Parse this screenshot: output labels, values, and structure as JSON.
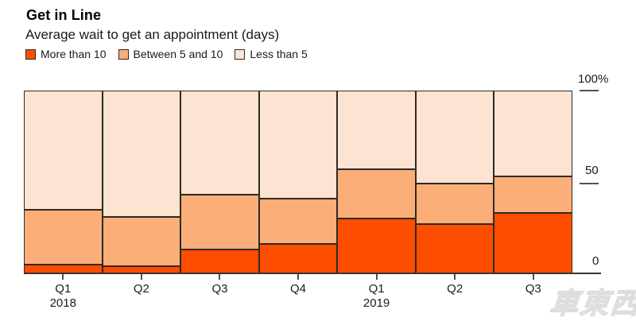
{
  "header": {
    "title": "Get in Line",
    "subtitle": "Average wait to get an appointment (days)"
  },
  "legend": {
    "items": [
      {
        "label": "More than 10",
        "color": "#fc4d00"
      },
      {
        "label": "Between 5 and 10",
        "color": "#fcae78"
      },
      {
        "label": "Less than 5",
        "color": "#fde3d1"
      }
    ]
  },
  "y_axis": {
    "ticks": [
      {
        "label": "100%",
        "value": 100
      },
      {
        "label": "50",
        "value": 50
      },
      {
        "label": "0",
        "value": 0
      }
    ]
  },
  "x_axis": {
    "labels": [
      {
        "quarter": "Q1",
        "year": "2018"
      },
      {
        "quarter": "Q2"
      },
      {
        "quarter": "Q3"
      },
      {
        "quarter": "Q4"
      },
      {
        "quarter": "Q1",
        "year": "2019"
      },
      {
        "quarter": "Q2"
      },
      {
        "quarter": "Q3"
      }
    ]
  },
  "chart_data": {
    "type": "bar",
    "stacked": true,
    "unit": "percent",
    "title": "Get in Line",
    "subtitle": "Average wait to get an appointment (days)",
    "categories": [
      "Q1 2018",
      "Q2 2018",
      "Q3 2018",
      "Q4 2018",
      "Q1 2019",
      "Q2 2019",
      "Q3 2019"
    ],
    "series": [
      {
        "name": "More than 10",
        "color": "#fc4d00",
        "values": [
          5,
          4,
          13,
          16,
          30,
          27,
          33
        ]
      },
      {
        "name": "Between 5 and 10",
        "color": "#fcae78",
        "values": [
          30,
          27,
          30,
          25,
          27,
          22,
          20
        ]
      },
      {
        "name": "Less than 5",
        "color": "#fde3d1",
        "values": [
          65,
          69,
          57,
          59,
          43,
          51,
          47
        ]
      }
    ],
    "ylim": [
      0,
      100
    ],
    "y_ticks": [
      0,
      50,
      100
    ],
    "legend_position": "top",
    "grid": false,
    "bar_border_color": "#2e2a25"
  },
  "watermark": {
    "text": "車東西"
  },
  "colors": {
    "segment_border": "#2e2a25",
    "axis": "#55504a",
    "text": "#1a1a1a",
    "background": "#ffffff"
  }
}
